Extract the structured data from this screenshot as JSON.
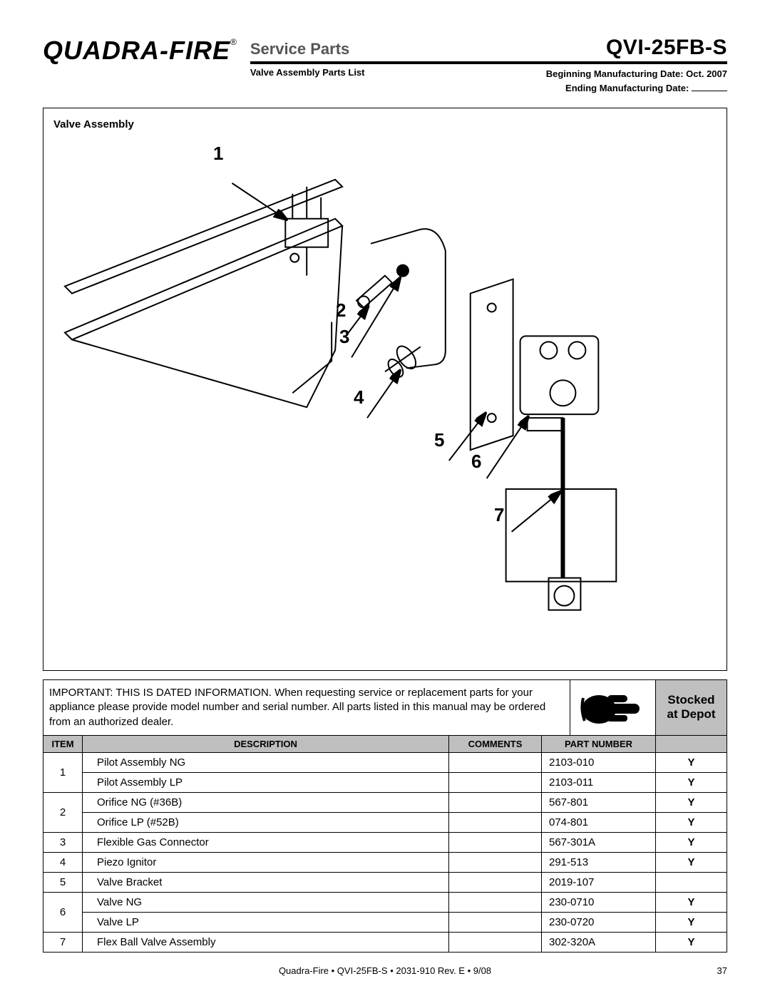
{
  "header": {
    "logo_text": "QUADRA-FIRE",
    "reg_mark": "®",
    "service_parts": "Service Parts",
    "model": "QVI-25FB-S",
    "subtitle": "Valve Assembly Parts List",
    "mfg_begin": "Beginning Manufacturing Date: Oct. 2007",
    "mfg_end": "Ending Manufacturing Date:"
  },
  "diagram": {
    "title": "Valve Assembly",
    "callouts": [
      "1",
      "2",
      "3",
      "4",
      "5",
      "6",
      "7"
    ]
  },
  "note": "IMPORTANT: THIS IS DATED INFORMATION. When requesting service or replacement parts for your appliance please provide model number and serial number. All parts listed in this manual may be ordered from an authorized dealer.",
  "stocked_label_line1": "Stocked",
  "stocked_label_line2": "at Depot",
  "table": {
    "headers": {
      "item": "ITEM",
      "desc": "DESCRIPTION",
      "comm": "COMMENTS",
      "part": "PART NUMBER",
      "stk": ""
    },
    "rows": [
      {
        "item": "1",
        "rowspan": 2,
        "desc": "Pilot Assembly NG",
        "comm": "",
        "part": "2103-010",
        "stk": "Y"
      },
      {
        "item": "",
        "desc": "Pilot Assembly LP",
        "comm": "",
        "part": "2103-011",
        "stk": "Y"
      },
      {
        "item": "2",
        "rowspan": 2,
        "desc": "Orifice NG (#36B)",
        "comm": "",
        "part": "567-801",
        "stk": "Y"
      },
      {
        "item": "",
        "desc": "Orifice LP (#52B)",
        "comm": "",
        "part": "074-801",
        "stk": "Y"
      },
      {
        "item": "3",
        "rowspan": 1,
        "desc": "Flexible Gas Connector",
        "comm": "",
        "part": "567-301A",
        "stk": "Y"
      },
      {
        "item": "4",
        "rowspan": 1,
        "desc": "Piezo Ignitor",
        "comm": "",
        "part": "291-513",
        "stk": "Y"
      },
      {
        "item": "5",
        "rowspan": 1,
        "desc": "Valve Bracket",
        "comm": "",
        "part": "2019-107",
        "stk": ""
      },
      {
        "item": "6",
        "rowspan": 2,
        "desc": "Valve NG",
        "comm": "",
        "part": "230-0710",
        "stk": "Y"
      },
      {
        "item": "",
        "desc": "Valve LP",
        "comm": "",
        "part": "230-0720",
        "stk": "Y"
      },
      {
        "item": "7",
        "rowspan": 1,
        "desc": "Flex Ball Valve Assembly",
        "comm": "",
        "part": "302-320A",
        "stk": "Y"
      }
    ]
  },
  "footer": {
    "center": "Quadra-Fire  •  QVI-25FB-S  •  2031-910  Rev. E  •  9/08",
    "page": "37"
  }
}
